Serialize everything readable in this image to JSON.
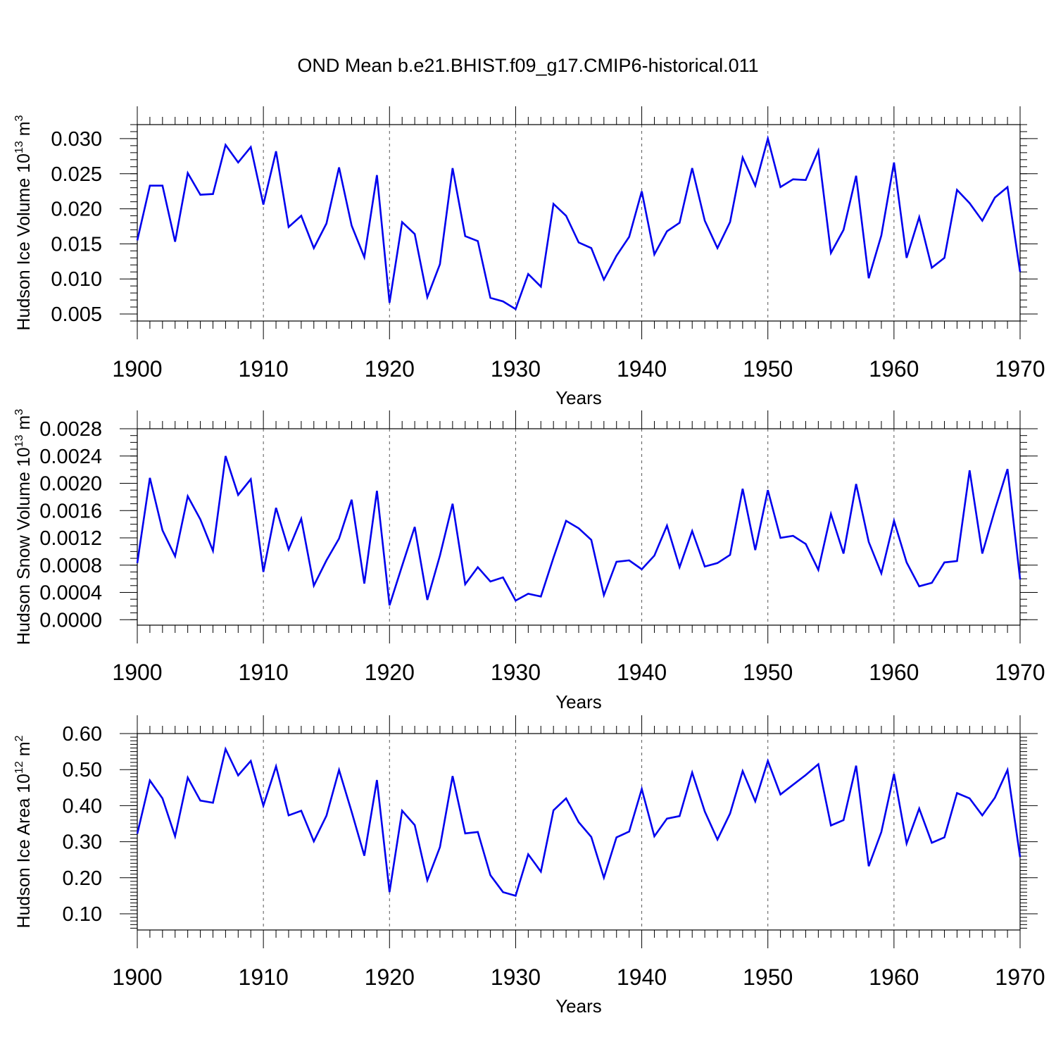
{
  "title": "OND Mean b.e21.BHIST.f09_g17.CMIP6-historical.011",
  "chart_data": [
    {
      "type": "line",
      "ylabel": "Hudson Ice Volume 10",
      "ylabel_exp": "13",
      "ylabel_unit": " m",
      "ylabel_unit_exp": "3",
      "xlabel": "Years",
      "xlim": [
        1900,
        1970
      ],
      "ylim": [
        0.004,
        0.032
      ],
      "yticks": [
        0.005,
        0.01,
        0.015,
        0.02,
        0.025,
        0.03
      ],
      "ytick_labels": [
        "0.005",
        "0.010",
        "0.015",
        "0.020",
        "0.025",
        "0.030"
      ],
      "y_minor": 0.001,
      "xticks": [
        1900,
        1910,
        1920,
        1930,
        1940,
        1950,
        1960,
        1970
      ],
      "xtick_labels": [
        "1900",
        "1910",
        "1920",
        "1930",
        "1940",
        "1950",
        "1960",
        "1970"
      ],
      "color": "#0000ee",
      "x": [
        1900,
        1901,
        1902,
        1903,
        1904,
        1905,
        1906,
        1907,
        1908,
        1909,
        1910,
        1911,
        1912,
        1913,
        1914,
        1915,
        1916,
        1917,
        1918,
        1919,
        1920,
        1921,
        1922,
        1923,
        1924,
        1925,
        1926,
        1927,
        1928,
        1929,
        1930,
        1931,
        1932,
        1933,
        1934,
        1935,
        1936,
        1937,
        1938,
        1939,
        1940,
        1941,
        1942,
        1943,
        1944,
        1945,
        1946,
        1947,
        1948,
        1949,
        1950,
        1951,
        1952,
        1953,
        1954,
        1955,
        1956,
        1957,
        1958,
        1959,
        1960,
        1961,
        1962,
        1963,
        1964,
        1965,
        1966,
        1967,
        1968,
        1969,
        1970
      ],
      "values": [
        0.0155,
        0.0233,
        0.0233,
        0.0153,
        0.0251,
        0.022,
        0.0221,
        0.0291,
        0.0266,
        0.0288,
        0.0206,
        0.0282,
        0.0174,
        0.019,
        0.0144,
        0.0179,
        0.0259,
        0.0176,
        0.0131,
        0.0248,
        0.0066,
        0.0181,
        0.0164,
        0.0074,
        0.0121,
        0.0258,
        0.0161,
        0.0154,
        0.0073,
        0.0068,
        0.0057,
        0.0107,
        0.0089,
        0.0207,
        0.019,
        0.0152,
        0.0144,
        0.0099,
        0.0133,
        0.016,
        0.0225,
        0.0135,
        0.0168,
        0.018,
        0.0258,
        0.0183,
        0.0144,
        0.0181,
        0.0273,
        0.0233,
        0.03,
        0.0231,
        0.0242,
        0.0241,
        0.0283,
        0.0137,
        0.017,
        0.0247,
        0.0101,
        0.0162,
        0.0266,
        0.013,
        0.0188,
        0.0116,
        0.013,
        0.0227,
        0.0208,
        0.0183,
        0.0216,
        0.0231,
        0.011
      ]
    },
    {
      "type": "line",
      "ylabel": "Hudson Snow Volume 10",
      "ylabel_exp": "13",
      "ylabel_unit": " m",
      "ylabel_unit_exp": "3",
      "xlabel": "Years",
      "xlim": [
        1900,
        1970
      ],
      "ylim": [
        -8e-05,
        0.0028
      ],
      "yticks": [
        0.0,
        0.0004,
        0.0008,
        0.0012,
        0.0016,
        0.002,
        0.0024,
        0.0028
      ],
      "ytick_labels": [
        "0.0000",
        "0.0004",
        "0.0008",
        "0.0012",
        "0.0016",
        "0.0020",
        "0.0024",
        "0.0028"
      ],
      "y_minor": 0.0001,
      "xticks": [
        1900,
        1910,
        1920,
        1930,
        1940,
        1950,
        1960,
        1970
      ],
      "xtick_labels": [
        "1900",
        "1910",
        "1920",
        "1930",
        "1940",
        "1950",
        "1960",
        "1970"
      ],
      "color": "#0000ee",
      "x": [
        1900,
        1901,
        1902,
        1903,
        1904,
        1905,
        1906,
        1907,
        1908,
        1909,
        1910,
        1911,
        1912,
        1913,
        1914,
        1915,
        1916,
        1917,
        1918,
        1919,
        1920,
        1921,
        1922,
        1923,
        1924,
        1925,
        1926,
        1927,
        1928,
        1929,
        1930,
        1931,
        1932,
        1933,
        1934,
        1935,
        1936,
        1937,
        1938,
        1939,
        1940,
        1941,
        1942,
        1943,
        1944,
        1945,
        1946,
        1947,
        1948,
        1949,
        1950,
        1951,
        1952,
        1953,
        1954,
        1955,
        1956,
        1957,
        1958,
        1959,
        1960,
        1961,
        1962,
        1963,
        1964,
        1965,
        1966,
        1967,
        1968,
        1969,
        1970
      ],
      "values": [
        0.00083,
        0.00208,
        0.00131,
        0.00093,
        0.00181,
        0.00147,
        0.00101,
        0.0024,
        0.00183,
        0.00206,
        0.0007,
        0.00164,
        0.00103,
        0.00148,
        0.0005,
        0.00087,
        0.00119,
        0.00176,
        0.00053,
        0.00189,
        0.00021,
        0.00079,
        0.00136,
        0.00029,
        0.00094,
        0.0017,
        0.00052,
        0.00077,
        0.00056,
        0.00062,
        0.00028,
        0.00038,
        0.00034,
        0.00091,
        0.00145,
        0.00134,
        0.00117,
        0.00036,
        0.00085,
        0.00087,
        0.00074,
        0.00094,
        0.00138,
        0.00077,
        0.0013,
        0.00078,
        0.00083,
        0.00095,
        0.00192,
        0.00102,
        0.0019,
        0.0012,
        0.00123,
        0.00111,
        0.00073,
        0.00155,
        0.00097,
        0.00199,
        0.00114,
        0.00068,
        0.00145,
        0.00084,
        0.00049,
        0.00054,
        0.00084,
        0.00086,
        0.00219,
        0.00097,
        0.00161,
        0.00221,
        0.00059
      ]
    },
    {
      "type": "line",
      "ylabel": "Hudson Ice Area 10",
      "ylabel_exp": "12",
      "ylabel_unit": " m",
      "ylabel_unit_exp": "2",
      "xlabel": "Years",
      "xlim": [
        1900,
        1970
      ],
      "ylim": [
        0.055,
        0.6
      ],
      "yticks": [
        0.1,
        0.2,
        0.3,
        0.4,
        0.5,
        0.6
      ],
      "ytick_labels": [
        "0.10",
        "0.20",
        "0.30",
        "0.40",
        "0.50",
        "0.60"
      ],
      "y_minor": 0.01,
      "xticks": [
        1900,
        1910,
        1920,
        1930,
        1940,
        1950,
        1960,
        1970
      ],
      "xtick_labels": [
        "1900",
        "1910",
        "1920",
        "1930",
        "1940",
        "1950",
        "1960",
        "1970"
      ],
      "color": "#0000ee",
      "x": [
        1900,
        1901,
        1902,
        1903,
        1904,
        1905,
        1906,
        1907,
        1908,
        1909,
        1910,
        1911,
        1912,
        1913,
        1914,
        1915,
        1916,
        1917,
        1918,
        1919,
        1920,
        1921,
        1922,
        1923,
        1924,
        1925,
        1926,
        1927,
        1928,
        1929,
        1930,
        1931,
        1932,
        1933,
        1934,
        1935,
        1936,
        1937,
        1938,
        1939,
        1940,
        1941,
        1942,
        1943,
        1944,
        1945,
        1946,
        1947,
        1948,
        1949,
        1950,
        1951,
        1952,
        1953,
        1954,
        1955,
        1956,
        1957,
        1958,
        1959,
        1960,
        1961,
        1962,
        1963,
        1964,
        1965,
        1966,
        1967,
        1968,
        1969,
        1970
      ],
      "values": [
        0.322,
        0.47,
        0.42,
        0.315,
        0.478,
        0.414,
        0.408,
        0.557,
        0.484,
        0.524,
        0.4,
        0.509,
        0.373,
        0.386,
        0.301,
        0.372,
        0.499,
        0.383,
        0.261,
        0.471,
        0.16,
        0.386,
        0.346,
        0.193,
        0.285,
        0.482,
        0.323,
        0.327,
        0.207,
        0.16,
        0.15,
        0.265,
        0.217,
        0.387,
        0.42,
        0.354,
        0.313,
        0.2,
        0.312,
        0.328,
        0.446,
        0.315,
        0.364,
        0.371,
        0.492,
        0.384,
        0.306,
        0.378,
        0.496,
        0.412,
        0.524,
        0.431,
        0.458,
        0.485,
        0.515,
        0.345,
        0.36,
        0.511,
        0.232,
        0.327,
        0.488,
        0.295,
        0.392,
        0.297,
        0.312,
        0.435,
        0.42,
        0.373,
        0.422,
        0.499,
        0.257
      ]
    }
  ]
}
